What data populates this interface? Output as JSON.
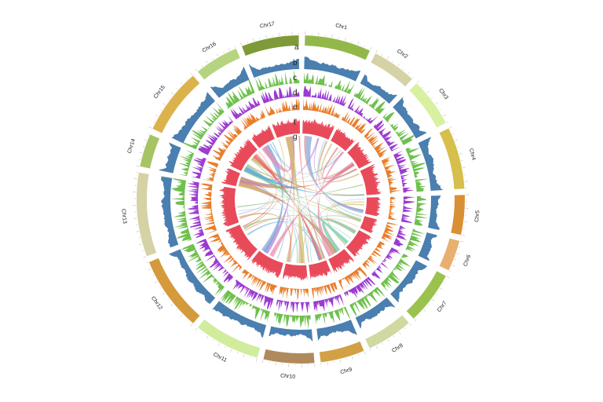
{
  "track_labels": [
    "a",
    "b",
    "c",
    "d",
    "e",
    "f",
    "g"
  ],
  "chromosomes": [
    {
      "name": "Chr1",
      "length": 30,
      "color": "#93b84a"
    },
    {
      "name": "Chr2",
      "length": 20,
      "color": "#d5d2a6"
    },
    {
      "name": "Chr3",
      "length": 22,
      "color": "#d8f0a0"
    },
    {
      "name": "Chr4",
      "length": 28,
      "color": "#d6bf4a"
    },
    {
      "name": "Chr5",
      "length": 18,
      "color": "#d99034"
    },
    {
      "name": "Chr6",
      "length": 14,
      "color": "#e8b070"
    },
    {
      "name": "Chr7",
      "length": 24,
      "color": "#9bc24e"
    },
    {
      "name": "Chr8",
      "length": 21,
      "color": "#d1d8a2"
    },
    {
      "name": "Chr9",
      "length": 20,
      "color": "#d2a045"
    },
    {
      "name": "Chr10",
      "length": 23,
      "color": "#b08a5c"
    },
    {
      "name": "Chr11",
      "length": 30,
      "color": "#d0ec9c"
    },
    {
      "name": "Chr12",
      "length": 34,
      "color": "#d49a3c"
    },
    {
      "name": "Chr13",
      "length": 38,
      "color": "#d5d2a6"
    },
    {
      "name": "Chr14",
      "length": 15,
      "color": "#a6c464"
    },
    {
      "name": "Chr15",
      "length": 30,
      "color": "#dcb24c"
    },
    {
      "name": "Chr16",
      "length": 20,
      "color": "#b6d480"
    },
    {
      "name": "Chr17",
      "length": 26,
      "color": "#7f9a38"
    }
  ],
  "track_colors": {
    "b": "#4a7faf",
    "c": "#6fc04e",
    "d": "#9b3cd0",
    "e": "#e87e2c",
    "f": "#e84a5a"
  },
  "link_palette": [
    "#c9a24a",
    "#e35a6a",
    "#7dbd6a",
    "#58a8e0",
    "#b483d6",
    "#f0a680",
    "#9fd0e0",
    "#d4c270",
    "#e98fb0",
    "#8aa8d8",
    "#6fcfa8",
    "#c98a60"
  ]
}
